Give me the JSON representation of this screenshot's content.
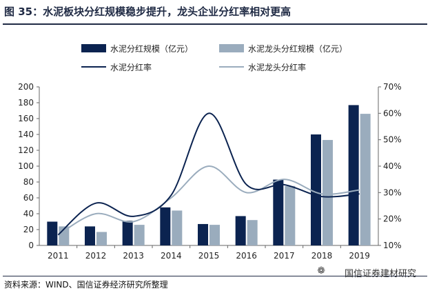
{
  "title": "图 35：水泥板块分红规模稳步提升，龙头企业分红率相对更高",
  "source": "资料来源：WIND、国信证券经济研究所整理",
  "watermark": "国信证券建材研究",
  "watermark_icon": "wechat-icon",
  "colors": {
    "dark": "#0b2350",
    "light": "#9aacbd",
    "axis": "#666666",
    "title": "#1f2a44"
  },
  "chart_data": {
    "type": "bar",
    "categories": [
      "2011",
      "2012",
      "2013",
      "2014",
      "2015",
      "2016",
      "2017",
      "2018",
      "2019"
    ],
    "series": [
      {
        "name": "水泥分红规模（亿元）",
        "kind": "bar",
        "axis": "left",
        "values": [
          30,
          24,
          31,
          48,
          27,
          37,
          83,
          140,
          177
        ]
      },
      {
        "name": "水泥龙头分红规模（亿元）",
        "kind": "bar",
        "axis": "left",
        "values": [
          24,
          17,
          26,
          44,
          26,
          32,
          75,
          133,
          166
        ]
      },
      {
        "name": "水泥分红率",
        "kind": "line",
        "axis": "right",
        "values": [
          14.0,
          26.0,
          21.0,
          29.0,
          60.0,
          33.0,
          33.0,
          28.5,
          29.5
        ]
      },
      {
        "name": "水泥龙头分红率",
        "kind": "line",
        "axis": "right",
        "values": [
          14.0,
          22.0,
          19.0,
          28.0,
          40.0,
          30.0,
          35.0,
          29.5,
          31.0
        ]
      }
    ],
    "left_axis": {
      "min": 0,
      "max": 200,
      "step": 20,
      "ticks": [
        "0",
        "20",
        "40",
        "60",
        "80",
        "100",
        "120",
        "140",
        "160",
        "180",
        "200"
      ]
    },
    "right_axis": {
      "min": 10,
      "max": 70,
      "step": 10,
      "ticks": [
        "10%",
        "20%",
        "30%",
        "40%",
        "50%",
        "60%",
        "70%"
      ]
    },
    "legend": "top"
  }
}
